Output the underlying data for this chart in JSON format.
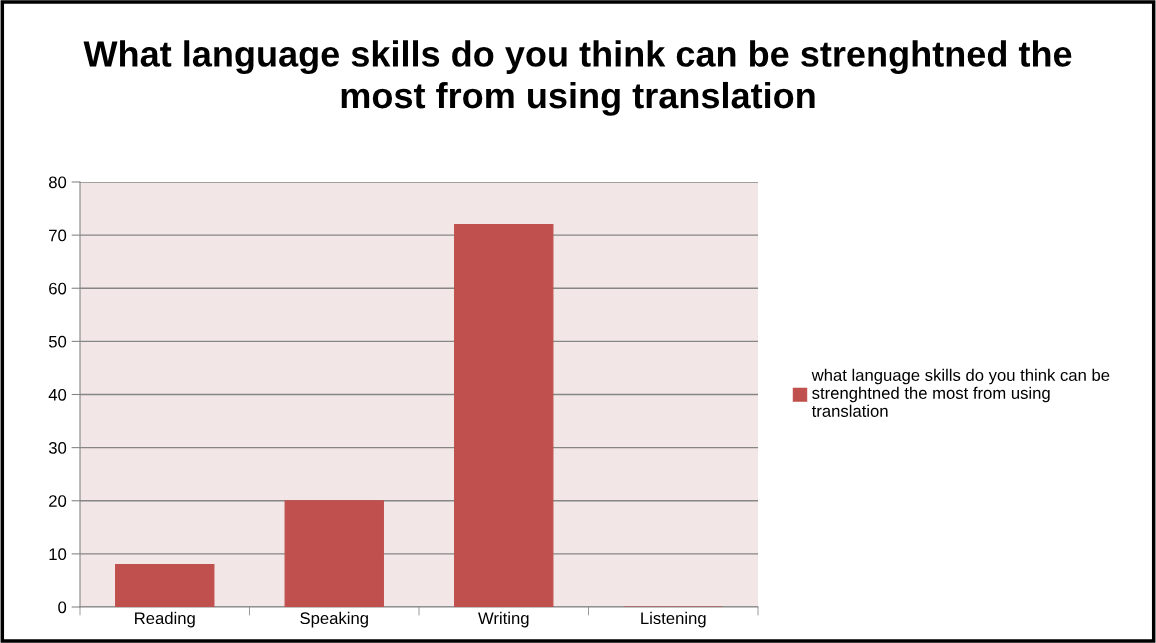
{
  "chart_data": {
    "type": "bar",
    "title": "What language skills do you think can be strenghtned the most from using translation",
    "categories": [
      "Reading",
      "Speaking",
      "Writing",
      "Listening"
    ],
    "series": [
      {
        "name": "what language skills do you think can be strenghtned the most from using translation",
        "color": "#c0504d",
        "values": [
          8,
          20,
          72,
          0
        ]
      }
    ],
    "ylim": [
      0,
      80
    ],
    "yticks": [
      0,
      10,
      20,
      30,
      40,
      50,
      60,
      70,
      80
    ],
    "grid": "y",
    "legend": "right"
  }
}
